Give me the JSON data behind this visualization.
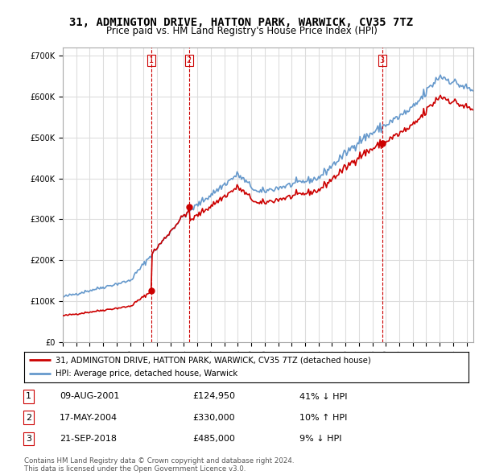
{
  "title": "31, ADMINGTON DRIVE, HATTON PARK, WARWICK, CV35 7TZ",
  "subtitle": "Price paid vs. HM Land Registry's House Price Index (HPI)",
  "property_label": "31, ADMINGTON DRIVE, HATTON PARK, WARWICK, CV35 7TZ (detached house)",
  "hpi_label": "HPI: Average price, detached house, Warwick",
  "transactions": [
    {
      "num": 1,
      "date": "09-AUG-2001",
      "price": 124950,
      "pct": "41%",
      "dir": "↓",
      "x_year": 2001.6
    },
    {
      "num": 2,
      "date": "17-MAY-2004",
      "price": 330000,
      "pct": "10%",
      "dir": "↑",
      "x_year": 2004.38
    },
    {
      "num": 3,
      "date": "21-SEP-2018",
      "price": 485000,
      "pct": "9%",
      "dir": "↓",
      "x_year": 2018.72
    }
  ],
  "footer": "Contains HM Land Registry data © Crown copyright and database right 2024.\nThis data is licensed under the Open Government Licence v3.0.",
  "ylim": [
    0,
    720000
  ],
  "xlim_start": 1995.0,
  "xlim_end": 2025.5,
  "property_color": "#cc0000",
  "hpi_color": "#6699cc",
  "grid_color": "#dddddd",
  "background_color": "#ffffff",
  "dashed_line_color": "#cc0000"
}
